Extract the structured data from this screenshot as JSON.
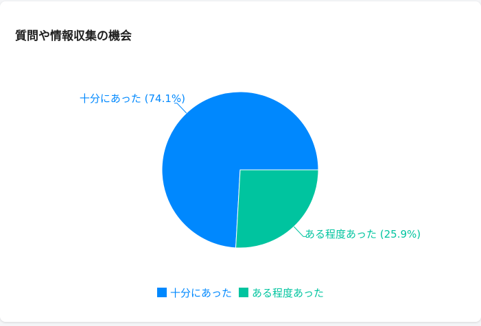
{
  "card": {
    "title": "質問や情報収集の機会"
  },
  "chart_data": {
    "type": "pie",
    "labels": [
      "十分にあった",
      "ある程度あった"
    ],
    "values": [
      74.1,
      25.9
    ],
    "data_labels": [
      "十分にあった (74.1%)",
      "ある程度あった (25.9%)"
    ],
    "colors": [
      "#0088fe",
      "#00c49f"
    ],
    "legend_position": "bottom"
  }
}
